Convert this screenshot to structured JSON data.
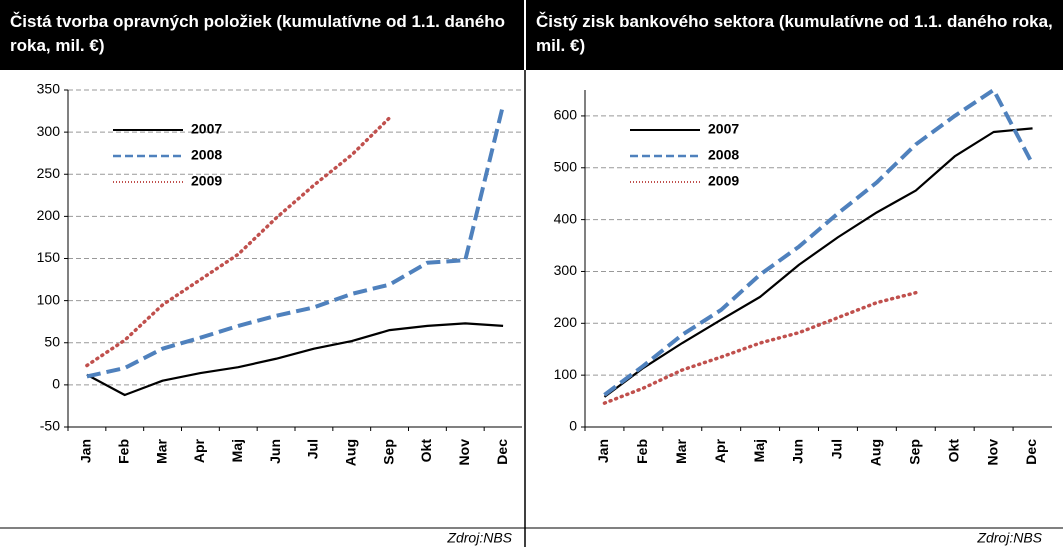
{
  "chart_data": [
    {
      "type": "line",
      "title": "Čistá tvorba opravných položiek (kumulatívne od 1.1. daného roka, mil. €)",
      "categories": [
        "Jan",
        "Feb",
        "Mar",
        "Apr",
        "Maj",
        "Jun",
        "Jul",
        "Aug",
        "Sep",
        "Okt",
        "Nov",
        "Dec"
      ],
      "series": [
        {
          "name": "2007",
          "color": "#000000",
          "style": "solid",
          "values": [
            12,
            -12,
            5,
            14,
            21,
            31,
            43,
            52,
            65,
            70,
            73,
            70
          ]
        },
        {
          "name": "2008",
          "color": "#4f81bd",
          "style": "dashed",
          "values": [
            10,
            20,
            43,
            56,
            70,
            82,
            92,
            108,
            119,
            145,
            148,
            332
          ]
        },
        {
          "name": "2009",
          "color": "#c0504d",
          "style": "dotted",
          "values": [
            23,
            53,
            95,
            125,
            155,
            198,
            237,
            273,
            317,
            null,
            null,
            null
          ]
        }
      ],
      "ylim": [
        -50,
        350
      ],
      "yticks": [
        -50,
        0,
        50,
        100,
        150,
        200,
        250,
        300,
        350
      ],
      "grid": true,
      "legend": "upper left",
      "source": "Zdroj:NBS"
    },
    {
      "type": "line",
      "title": "Čistý zisk bankového sektora (kumulatívne od 1.1. daného roka, mil. €)",
      "categories": [
        "Jan",
        "Feb",
        "Mar",
        "Apr",
        "Maj",
        "Jun",
        "Jul",
        "Aug",
        "Sep",
        "Okt",
        "Nov",
        "Dec"
      ],
      "series": [
        {
          "name": "2007",
          "color": "#000000",
          "style": "solid",
          "values": [
            58,
            114,
            162,
            207,
            251,
            313,
            366,
            414,
            456,
            522,
            569,
            576
          ]
        },
        {
          "name": "2008",
          "color": "#4f81bd",
          "style": "dashed",
          "values": [
            62,
            118,
            178,
            226,
            294,
            348,
            412,
            472,
            545,
            600,
            650,
            507
          ]
        },
        {
          "name": "2009",
          "color": "#c0504d",
          "style": "dotted",
          "values": [
            46,
            75,
            110,
            135,
            162,
            182,
            211,
            240,
            259,
            null,
            null,
            null
          ]
        }
      ],
      "ylim": [
        0,
        650
      ],
      "yticks": [
        0,
        100,
        200,
        300,
        400,
        500,
        600
      ],
      "grid": true,
      "legend": "upper left",
      "source": "Zdroj:NBS"
    }
  ]
}
